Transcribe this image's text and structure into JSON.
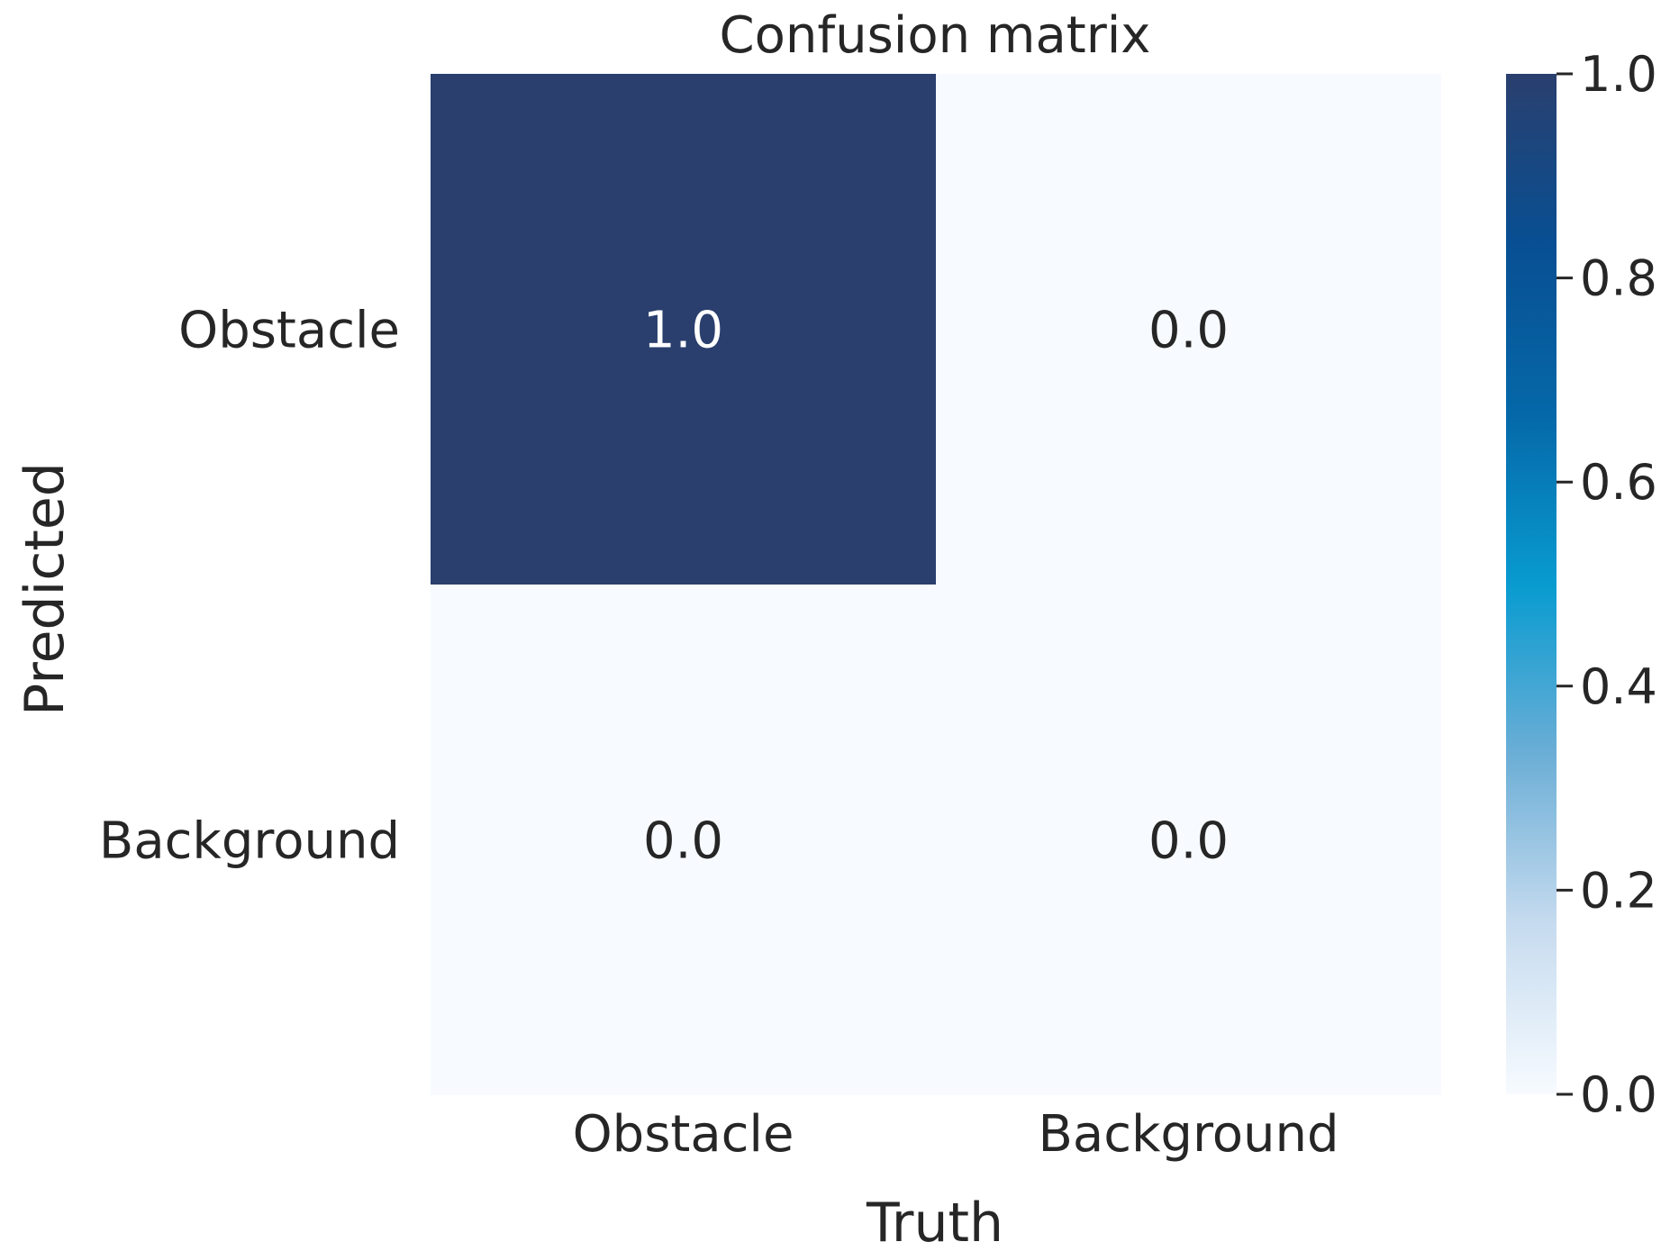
{
  "chart_data": {
    "type": "heatmap",
    "title": "Confusion matrix",
    "xlabel": "Truth",
    "ylabel": "Predicted",
    "x_categories": [
      "Obstacle",
      "Background"
    ],
    "y_categories": [
      "Obstacle",
      "Background"
    ],
    "values": [
      [
        1.0,
        0.0
      ],
      [
        0.0,
        0.0
      ]
    ],
    "value_format": "1 decimal",
    "colormap": "Blues",
    "colormap_stops": [
      "#f7fbff",
      "#c6dbef",
      "#6baed6",
      "#089bd0",
      "#0568a8",
      "#084f93",
      "#2a3f6e"
    ],
    "vmin": 0.0,
    "vmax": 1.0,
    "colorbar": {
      "ticks": [
        0.0,
        0.2,
        0.4,
        0.6,
        0.8,
        1.0
      ],
      "tick_labels": [
        "0.0",
        "0.2",
        "0.4",
        "0.6",
        "0.8",
        "1.0"
      ]
    },
    "high_cell_color": "#2a3f6e",
    "low_cell_color": "#f7fbff",
    "annotation_light_color": "#ffffff",
    "annotation_dark_color": "#262626"
  }
}
